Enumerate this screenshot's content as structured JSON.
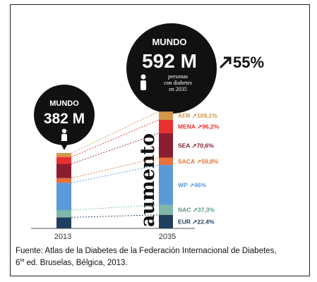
{
  "chart_data": {
    "type": "bar",
    "categories": [
      "2013",
      "2035"
    ],
    "totals": {
      "2013": {
        "label": "MUNDO",
        "value": "382 M"
      },
      "2035": {
        "label": "MUNDO",
        "value": "592 M",
        "note": [
          "personas",
          "con diabetes",
          "en 2035"
        ]
      }
    },
    "growth": "55%",
    "vertical_label": "aumento",
    "series": [
      {
        "name": "EUR",
        "change": "22.4%",
        "values": [
          56,
          69
        ],
        "color": "#1f3f5e"
      },
      {
        "name": "NAC",
        "change": "37,3%",
        "values": [
          37,
          50
        ],
        "color": "#7fb7a8"
      },
      {
        "name": "WP",
        "change": "46%",
        "values": [
          138,
          202
        ],
        "color": "#5a9ad8"
      },
      {
        "name": "SACA",
        "change": "59,8%",
        "values": [
          24,
          38
        ],
        "color": "#e8703a"
      },
      {
        "name": "SEA",
        "change": "70,6%",
        "values": [
          72,
          123
        ],
        "color": "#8a1e2e"
      },
      {
        "name": "MENA",
        "change": "96,2%",
        "values": [
          35,
          68
        ],
        "color": "#e8312e"
      },
      {
        "name": "AFR",
        "change": "109,1%",
        "values": [
          20,
          42
        ],
        "color": "#d4964a"
      }
    ]
  },
  "caption": {
    "line1": "Fuente: Atlas de la Diabetes de la Federación Internacional de Diabetes,",
    "line2_num": "6",
    "line2_sup": "ta",
    "line2_rest": " ed. Bruselas, Bélgica, 2013."
  }
}
